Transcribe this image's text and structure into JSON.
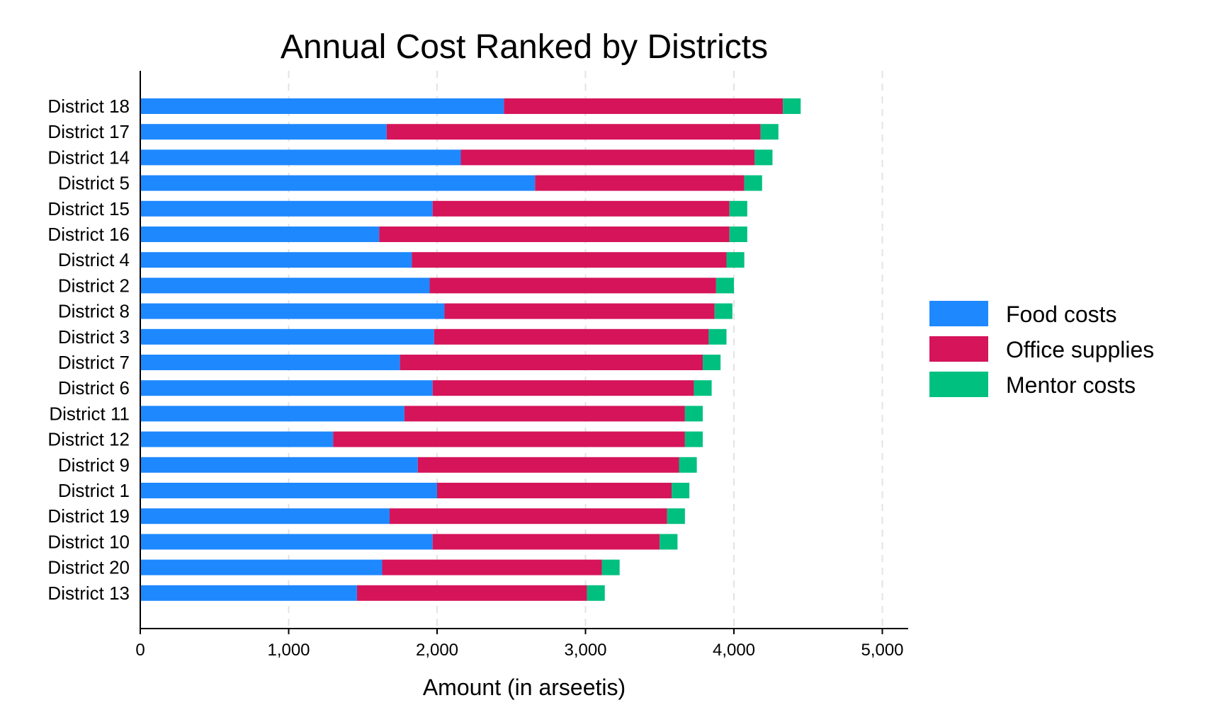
{
  "chart_data": {
    "type": "bar",
    "orientation": "horizontal",
    "stacked": true,
    "title": "Annual Cost Ranked by Districts",
    "xlabel": "Amount (in arseetis)",
    "ylabel": "",
    "xlim": [
      0,
      5160
    ],
    "xticks": [
      0,
      1000,
      2000,
      3000,
      4000,
      5000
    ],
    "xtick_labels": [
      "0",
      "1,000",
      "2,000",
      "3,000",
      "4,000",
      "5,000"
    ],
    "grid": "vertical dashed",
    "legend_position": "right",
    "categories": [
      "District 18",
      "District 17",
      "District 14",
      "District 5",
      "District 15",
      "District 16",
      "District 4",
      "District 2",
      "District 8",
      "District 3",
      "District 7",
      "District 6",
      "District 11",
      "District 12",
      "District 9",
      "District 1",
      "District 19",
      "District 10",
      "District 20",
      "District 13"
    ],
    "series": [
      {
        "name": "Food costs",
        "color": "#1e88ff",
        "values": [
          2450,
          1660,
          2160,
          2660,
          1970,
          1610,
          1830,
          1950,
          2050,
          1980,
          1750,
          1970,
          1780,
          1300,
          1870,
          2000,
          1680,
          1970,
          1630,
          1460
        ]
      },
      {
        "name": "Office supplies",
        "color": "#d5145a",
        "values": [
          1880,
          2520,
          1980,
          1410,
          2000,
          2360,
          2120,
          1930,
          1820,
          1850,
          2040,
          1760,
          1890,
          2370,
          1760,
          1580,
          1870,
          1530,
          1480,
          1550
        ]
      },
      {
        "name": "Mentor costs",
        "color": "#00c07f",
        "values": [
          120,
          120,
          120,
          120,
          120,
          120,
          120,
          120,
          120,
          120,
          120,
          120,
          120,
          120,
          120,
          120,
          120,
          120,
          120,
          120
        ]
      }
    ]
  }
}
